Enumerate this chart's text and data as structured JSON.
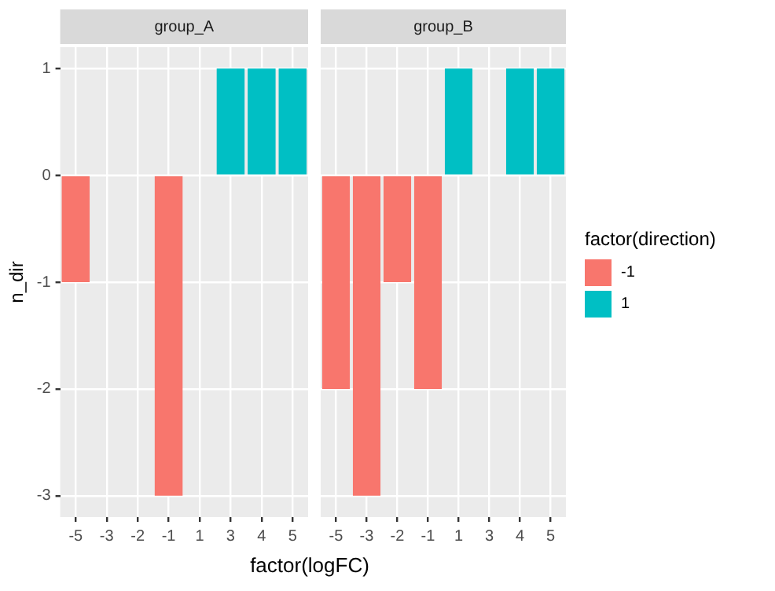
{
  "chart_data": [
    {
      "type": "bar",
      "title": "group_A",
      "ylabel": "n_dir",
      "xlabel": "factor(logFC)",
      "categories": [
        "-5",
        "-3",
        "-2",
        "-1",
        "1",
        "3",
        "4",
        "5"
      ],
      "stacked": true,
      "ylim": [
        -3.2,
        1.2
      ],
      "yticks": [
        -3,
        -2,
        -1,
        0,
        1
      ],
      "grid": true,
      "legend": false,
      "series": [
        {
          "color": "#f8766d",
          "values": [
            -1,
            null,
            null,
            -3,
            null,
            null,
            null,
            null
          ]
        },
        {
          "color": "#00bfc4",
          "values": [
            null,
            null,
            null,
            null,
            null,
            1,
            1,
            1
          ]
        }
      ]
    },
    {
      "type": "bar",
      "title": "group_B",
      "categories": [
        "-5",
        "-3",
        "-2",
        "-1",
        "1",
        "3",
        "4",
        "5"
      ],
      "stacked": true,
      "ylim": [
        -3.2,
        1.2
      ],
      "yticks": [
        -3,
        -2,
        -1,
        0,
        1
      ],
      "grid": true,
      "legend": "right",
      "legend_title": "factor(direction)",
      "tick_labels": "x",
      "series": [
        {
          "name": "-1",
          "color": "#f8766d",
          "values": [
            -2,
            -3,
            -1,
            -2,
            null,
            null,
            null,
            null
          ]
        },
        {
          "name": "1",
          "color": "#00bfc4",
          "values": [
            null,
            null,
            null,
            null,
            1,
            null,
            1,
            1
          ]
        }
      ]
    }
  ]
}
